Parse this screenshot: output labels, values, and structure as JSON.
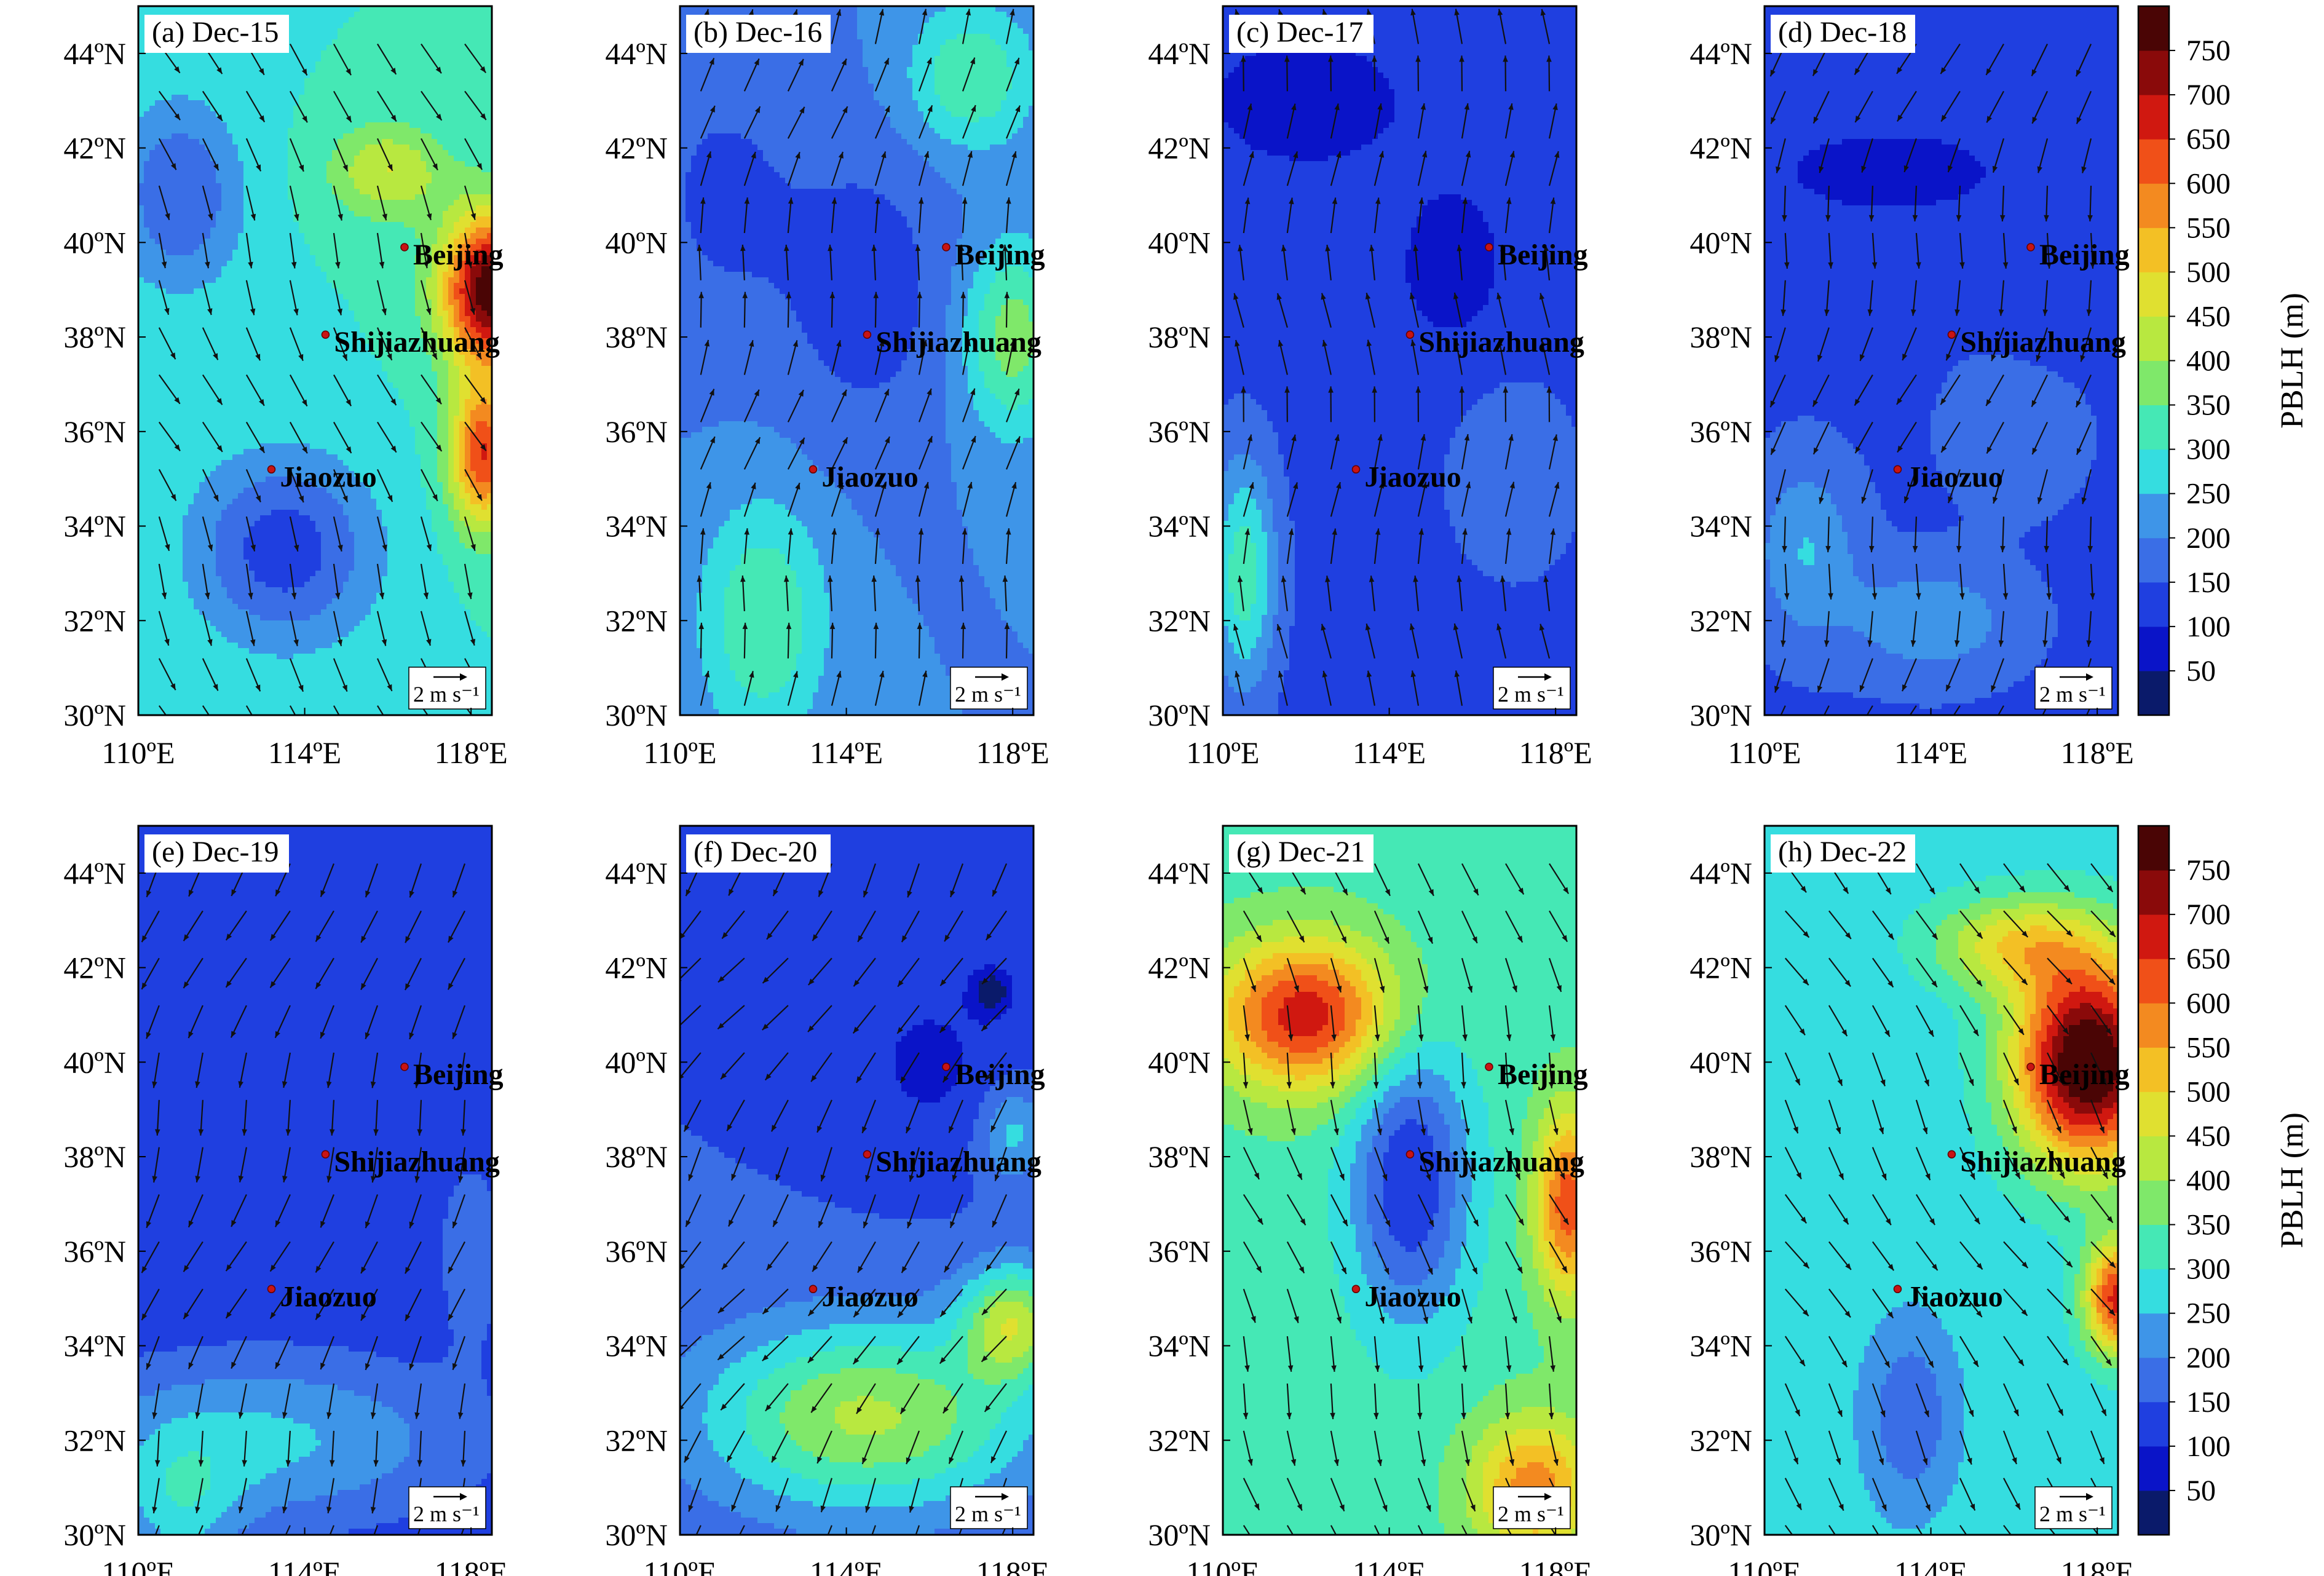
{
  "chart_data": {
    "type": "heatmap",
    "variable_label": "PBLH (m)",
    "colorbar": {
      "ticks": [
        50,
        100,
        150,
        200,
        250,
        300,
        350,
        400,
        450,
        500,
        550,
        600,
        650,
        700,
        750
      ],
      "colors": [
        "#0a1a6a",
        "#0a14c8",
        "#1f3fe0",
        "#3a6ee6",
        "#3e95e8",
        "#35dde0",
        "#45e8b5",
        "#7fe86a",
        "#b8e840",
        "#e0e030",
        "#f3c025",
        "#f38a20",
        "#f05018",
        "#d01810",
        "#8a0a0a",
        "#4a0505"
      ]
    },
    "axes": {
      "lon_ticks": [
        "110ºE",
        "114ºE",
        "118ºE"
      ],
      "lat_ticks": [
        "30ºN",
        "32ºN",
        "34ºN",
        "36ºN",
        "38ºN",
        "40ºN",
        "42ºN",
        "44ºN"
      ],
      "lon_range": [
        110,
        118.5
      ],
      "lat_range": [
        30,
        45
      ]
    },
    "wind_reference": {
      "label": "2 m s⁻¹",
      "speed": 2
    },
    "cities": [
      {
        "name": "Beijing",
        "lon": 116.4,
        "lat": 39.9
      },
      {
        "name": "Shijiazhuang",
        "lon": 114.5,
        "lat": 38.05
      },
      {
        "name": "Jiaozuo",
        "lon": 113.2,
        "lat": 35.2
      }
    ],
    "panels": [
      {
        "label": "(a) Dec-15",
        "base": 300,
        "wind": [
          0.4,
          -1.0
        ],
        "blobs": [
          [
            118.5,
            39,
            1.2,
            1.6,
            500
          ],
          [
            118.3,
            35.5,
            0.8,
            1.5,
            350
          ],
          [
            113.5,
            33.5,
            2.2,
            2,
            -180
          ],
          [
            111,
            41,
            1.5,
            2,
            -150
          ],
          [
            116,
            41.5,
            1.4,
            1,
            150
          ]
        ]
      },
      {
        "label": "(b) Dec-16",
        "base": 200,
        "wind": [
          0.2,
          1.0
        ],
        "blobs": [
          [
            117,
            43.5,
            1.5,
            1.5,
            150
          ],
          [
            112,
            32,
            1.5,
            2.5,
            150
          ],
          [
            118,
            38,
            1.2,
            2,
            180
          ],
          [
            114.5,
            39,
            2,
            3,
            -80
          ],
          [
            111,
            41,
            2,
            3,
            -60
          ]
        ]
      },
      {
        "label": "(c) Dec-17",
        "base": 130,
        "wind": [
          0,
          1.0
        ],
        "blobs": [
          [
            110.5,
            33,
            0.8,
            2.5,
            200
          ],
          [
            115.5,
            39.5,
            1.5,
            2,
            -50
          ],
          [
            117,
            35,
            1.5,
            2,
            70
          ],
          [
            112,
            43,
            2.5,
            1.5,
            -60
          ]
        ]
      },
      {
        "label": "(d) Dec-18",
        "base": 140,
        "wind": [
          -0.2,
          -0.8
        ],
        "blobs": [
          [
            111,
            33.5,
            1.2,
            1.8,
            110
          ],
          [
            114,
            32,
            2,
            1.2,
            100
          ],
          [
            116,
            36,
            1.5,
            1.5,
            60
          ],
          [
            113,
            41.5,
            3,
            1,
            -70
          ],
          [
            117,
            39,
            1.5,
            1.5,
            -40
          ]
        ]
      },
      {
        "label": "(e) Dec-19",
        "base": 110,
        "wind": [
          -0.3,
          -0.9
        ],
        "blobs": [
          [
            113,
            32,
            5,
            1.8,
            150
          ],
          [
            111,
            30.5,
            1.5,
            1.5,
            120
          ],
          [
            118,
            36,
            0.8,
            2,
            80
          ]
        ]
      },
      {
        "label": "(f) Dec-20",
        "base": 150,
        "wind": [
          -0.5,
          -0.8
        ],
        "blobs": [
          [
            114.5,
            32.5,
            4,
            2,
            260
          ],
          [
            118,
            34.5,
            1.2,
            1.2,
            260
          ],
          [
            118,
            38.5,
            0.8,
            1,
            120
          ],
          [
            117.5,
            41.5,
            0.5,
            0.5,
            -120
          ],
          [
            116,
            40,
            2,
            2,
            -60
          ]
        ]
      },
      {
        "label": "(g) Dec-21",
        "base": 330,
        "wind": [
          0.3,
          -1.0
        ],
        "blobs": [
          [
            112,
            41,
            2.2,
            1.6,
            350
          ],
          [
            118.3,
            37,
            0.8,
            2,
            300
          ],
          [
            117.5,
            31,
            1.5,
            1.5,
            250
          ],
          [
            114.5,
            37.5,
            1.4,
            3,
            -230
          ]
        ]
      },
      {
        "label": "(h) Dec-22",
        "base": 270,
        "wind": [
          0.6,
          -1.0
        ],
        "blobs": [
          [
            117.8,
            40,
            1.8,
            2.2,
            560
          ],
          [
            116,
            42.5,
            2,
            1,
            200
          ],
          [
            113.5,
            32.5,
            1,
            1.8,
            -120
          ],
          [
            118.5,
            35,
            0.8,
            1.2,
            400
          ]
        ]
      }
    ],
    "subtitle_labels": [
      "(a) Dec-15",
      "(b) Dec-16",
      "(c) Dec-17",
      "(d) Dec-18",
      "(e) Dec-19",
      "(f) Dec-20",
      "(g) Dec-21",
      "(h) Dec-22"
    ]
  }
}
